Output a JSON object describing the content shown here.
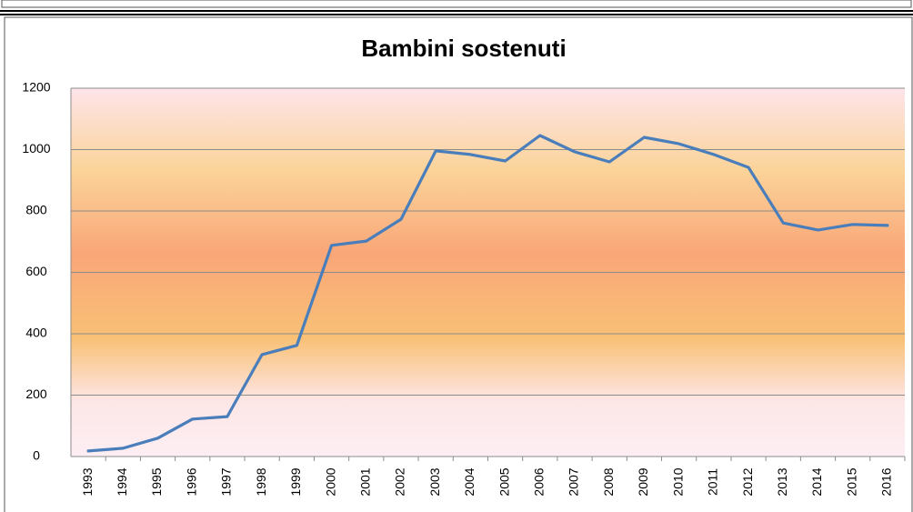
{
  "chart_data": {
    "type": "line",
    "title": "Bambini sostenuti",
    "categories": [
      "1993",
      "1994",
      "1995",
      "1996",
      "1997",
      "1998",
      "1999",
      "2000",
      "2001",
      "2002",
      "2003",
      "2004",
      "2005",
      "2006",
      "2007",
      "2008",
      "2009",
      "2010",
      "2011",
      "2012",
      "2013",
      "2014",
      "2015",
      "2016"
    ],
    "values": [
      18,
      27,
      60,
      122,
      130,
      332,
      362,
      688,
      702,
      773,
      996,
      984,
      963,
      1046,
      993,
      960,
      1040,
      1019,
      984,
      942,
      761,
      738,
      756,
      753
    ],
    "color": "#4a7ebb",
    "ylim": [
      0,
      1200
    ],
    "yticks": [
      0,
      200,
      400,
      600,
      800,
      1000,
      1200
    ],
    "grid": true
  }
}
